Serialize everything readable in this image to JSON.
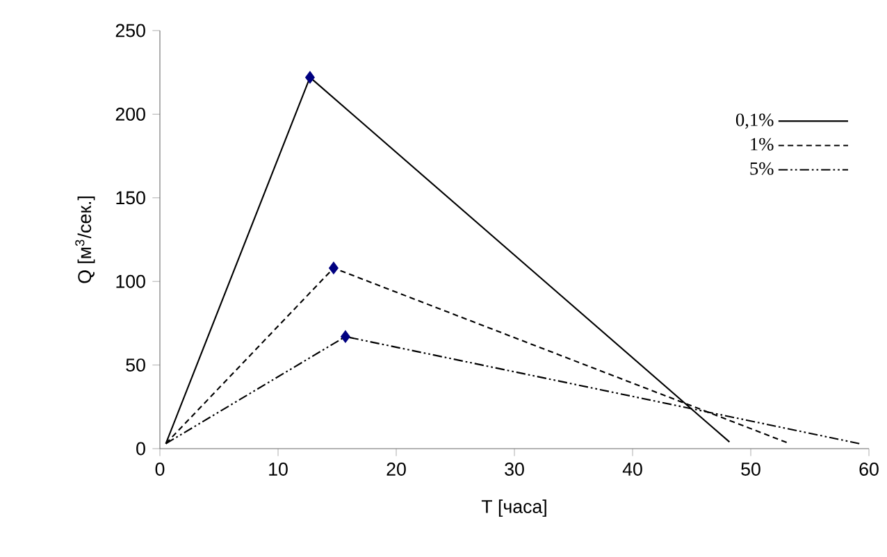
{
  "chart_data": {
    "type": "line",
    "xlabel": "T [часа]",
    "ylabel": "Q   [м$^{3}$/сек.]",
    "xlim": [
      0,
      60
    ],
    "ylim": [
      0,
      250
    ],
    "xticks": [
      0,
      10,
      20,
      30,
      40,
      50,
      60
    ],
    "yticks": [
      0,
      50,
      100,
      150,
      200,
      250
    ],
    "grid": false,
    "legend": "top right",
    "marker": "none",
    "series": [
      {
        "name": "0,1%",
        "color": "#000000",
        "line_style": "solid",
        "x": [
          0.5,
          12.7,
          48.2
        ],
        "values": [
          3,
          222,
          4
        ]
      },
      {
        "name": "1%",
        "color": "#000000",
        "line_style": "dashed",
        "x": [
          0.5,
          14.7,
          53.3
        ],
        "values": [
          3,
          108,
          3
        ]
      },
      {
        "name": "5%",
        "color": "#000000",
        "line_style": "dashdotdot",
        "x": [
          0.5,
          15.7,
          59.2
        ],
        "values": [
          3,
          67,
          3
        ]
      },
      {
        "type": "scatter",
        "color": "#000080",
        "marker": "diamond",
        "x": [
          12.7,
          14.7,
          15.7
        ],
        "values": [
          222,
          108,
          67
        ]
      }
    ]
  }
}
